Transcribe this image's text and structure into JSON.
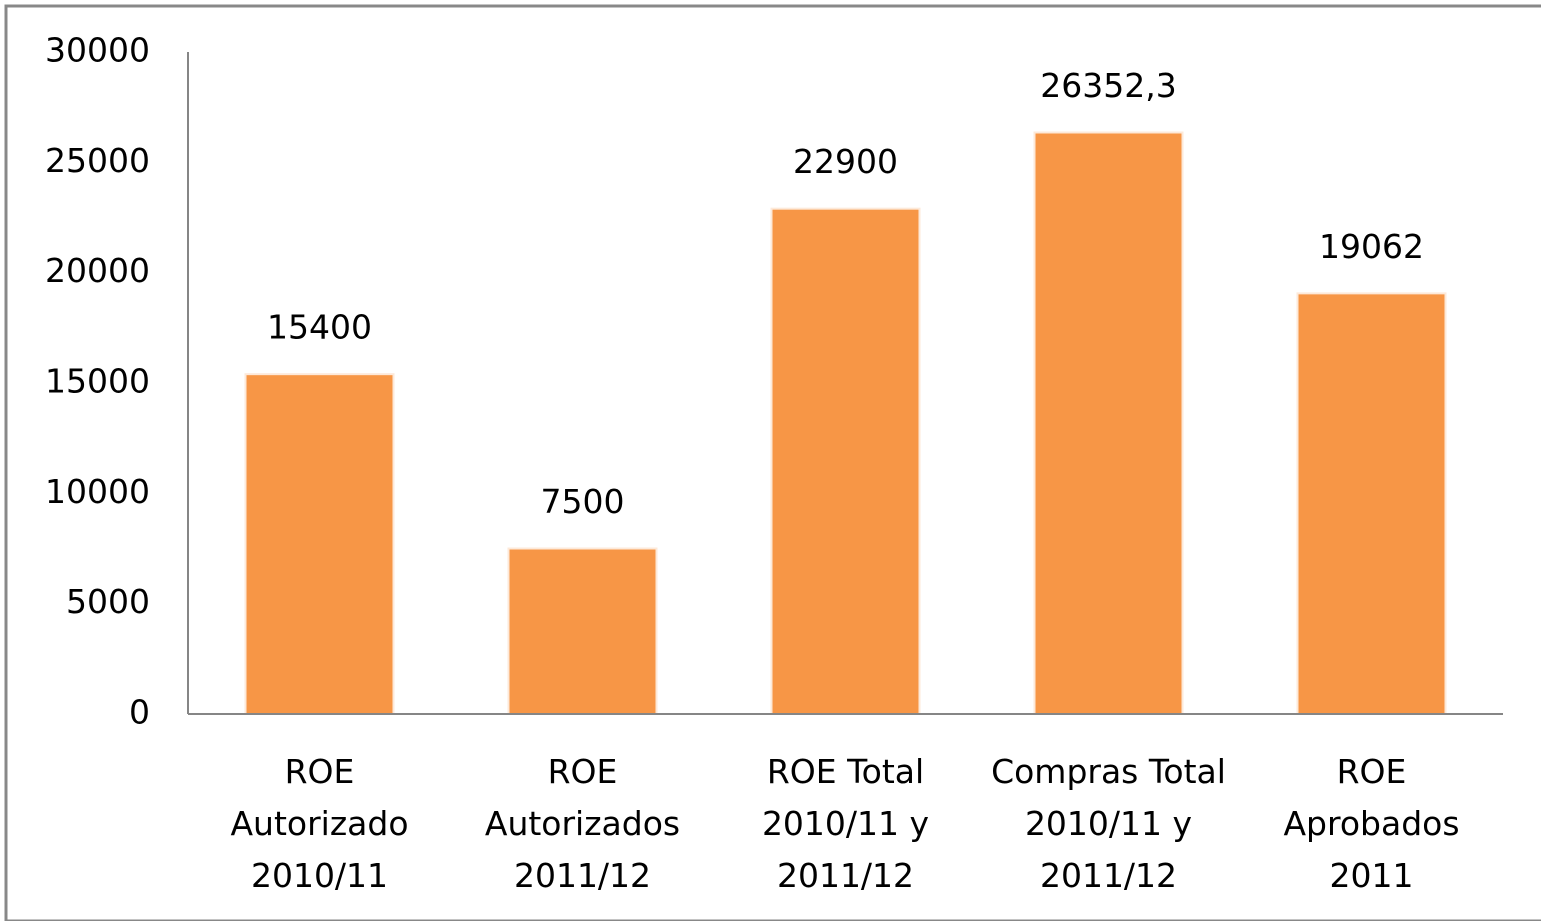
{
  "chart_data": {
    "type": "bar",
    "categories": [
      "ROE\nAutorizado\n2010/11",
      "ROE\nAutorizados\n2011/12",
      "ROE Total\n2010/11 y\n2011/12",
      "Compras Total\n2010/11 y\n2011/12",
      "ROE\nAprobados\n2011"
    ],
    "values": [
      15400,
      7500,
      22900,
      26352.3,
      19062
    ],
    "value_labels": [
      "15400",
      "7500",
      "22900",
      "26352,3",
      "19062"
    ],
    "color": "#f79646",
    "ylim": [
      0,
      30000
    ],
    "yticks": [
      0,
      5000,
      10000,
      15000,
      20000,
      25000,
      30000
    ],
    "grid": false
  }
}
